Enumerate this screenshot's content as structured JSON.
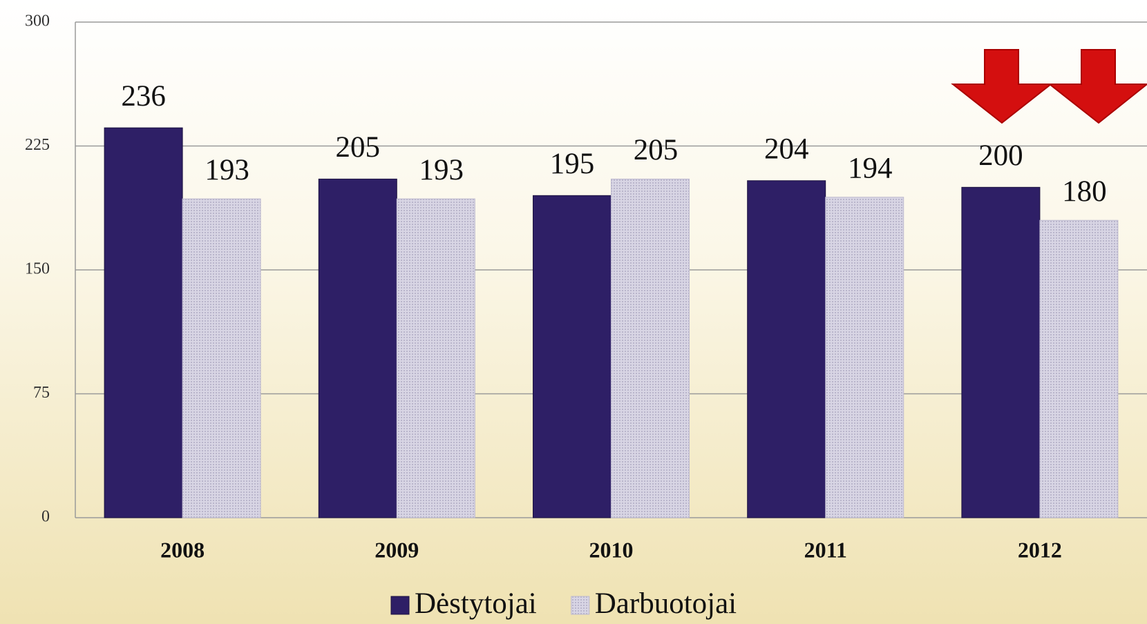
{
  "chart_data": {
    "type": "bar",
    "categories": [
      "2008",
      "2009",
      "2010",
      "2011",
      "2012"
    ],
    "series": [
      {
        "name": "Dėstytojai",
        "color": "#2e1f66",
        "values": [
          236,
          205,
          195,
          204,
          200
        ]
      },
      {
        "name": "Darbuotojai",
        "color": "#cfcbdc",
        "values": [
          193,
          193,
          205,
          194,
          180
        ]
      }
    ],
    "ylim": [
      0,
      300
    ],
    "yticks": [
      0,
      75,
      150,
      225,
      300
    ],
    "grid": true,
    "legend": "bottom"
  }
}
